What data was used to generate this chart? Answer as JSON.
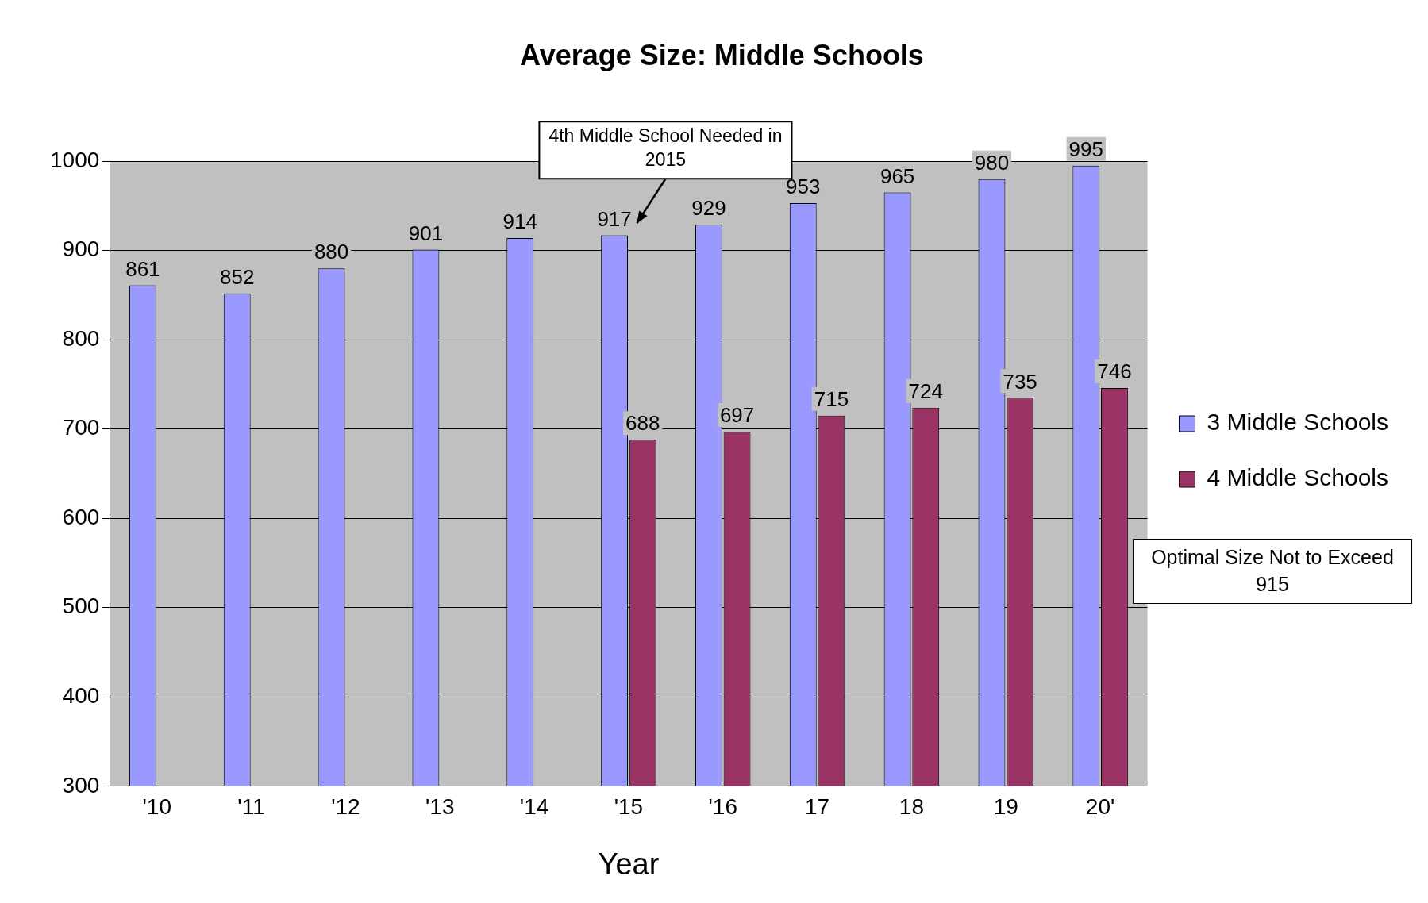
{
  "chart_data": {
    "type": "bar",
    "title": "Average Size: Middle Schools",
    "xlabel": "Year",
    "categories": [
      "'10",
      "'11",
      "'12",
      "'13",
      "'14",
      "'15",
      "'16",
      "17",
      "18",
      "19",
      "20'"
    ],
    "series": [
      {
        "name": "3 Middle Schools",
        "color": "#9999ff",
        "values": [
          861,
          852,
          880,
          901,
          914,
          917,
          929,
          953,
          965,
          980,
          995
        ]
      },
      {
        "name": "4 Middle Schools",
        "color": "#993366",
        "values": [
          null,
          null,
          null,
          null,
          null,
          688,
          697,
          715,
          724,
          735,
          746
        ]
      }
    ],
    "ylim": [
      300,
      1000
    ],
    "yticks": [
      300,
      400,
      500,
      600,
      700,
      800,
      900,
      1000
    ],
    "grid": "y",
    "legend": "right",
    "data_labels": true,
    "annotations": [
      "4th Middle School Needed in 2015",
      "Optimal Size Not to Exceed 915"
    ]
  }
}
